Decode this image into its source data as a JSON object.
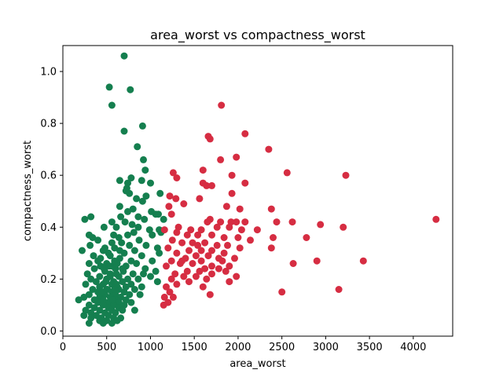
{
  "chart_data": {
    "type": "scatter",
    "title": "area_worst vs compactness_worst",
    "xlabel": "area_worst",
    "ylabel": "compactness_worst",
    "xlim": [
      0,
      4450
    ],
    "ylim": [
      -0.02,
      1.1
    ],
    "xticks": [
      0,
      500,
      1000,
      1500,
      2000,
      2500,
      3000,
      3500,
      4000
    ],
    "yticks": [
      0.0,
      0.2,
      0.4,
      0.6,
      0.8,
      1.0
    ],
    "grid": false,
    "colors": {
      "green": "#157f4f",
      "red": "#d62d42"
    },
    "series": [
      {
        "color": "#157f4f",
        "points": [
          [
            700,
            1.06
          ],
          [
            530,
            0.94
          ],
          [
            770,
            0.93
          ],
          [
            560,
            0.87
          ],
          [
            910,
            0.79
          ],
          [
            700,
            0.77
          ],
          [
            850,
            0.71
          ],
          [
            920,
            0.66
          ],
          [
            940,
            0.62
          ],
          [
            780,
            0.59
          ],
          [
            650,
            0.58
          ],
          [
            900,
            0.58
          ],
          [
            1000,
            0.57
          ],
          [
            740,
            0.57
          ],
          [
            730,
            0.55
          ],
          [
            760,
            0.53
          ],
          [
            720,
            0.54
          ],
          [
            1110,
            0.53
          ],
          [
            950,
            0.52
          ],
          [
            840,
            0.51
          ],
          [
            910,
            0.5
          ],
          [
            650,
            0.48
          ],
          [
            800,
            0.47
          ],
          [
            740,
            0.46
          ],
          [
            1010,
            0.46
          ],
          [
            1090,
            0.45
          ],
          [
            1060,
            0.45
          ],
          [
            860,
            0.44
          ],
          [
            660,
            0.44
          ],
          [
            320,
            0.44
          ],
          [
            250,
            0.43
          ],
          [
            1150,
            0.43
          ],
          [
            930,
            0.43
          ],
          [
            560,
            0.42
          ],
          [
            710,
            0.42
          ],
          [
            790,
            0.41
          ],
          [
            470,
            0.4
          ],
          [
            860,
            0.4
          ],
          [
            610,
            0.4
          ],
          [
            990,
            0.39
          ],
          [
            1100,
            0.39
          ],
          [
            1120,
            0.38
          ],
          [
            1020,
            0.37
          ],
          [
            300,
            0.37
          ],
          [
            580,
            0.37
          ],
          [
            740,
            0.37
          ],
          [
            810,
            0.38
          ],
          [
            340,
            0.36
          ],
          [
            640,
            0.36
          ],
          [
            870,
            0.35
          ],
          [
            400,
            0.35
          ],
          [
            670,
            0.34
          ],
          [
            760,
            0.33
          ],
          [
            950,
            0.33
          ],
          [
            310,
            0.33
          ],
          [
            1080,
            0.32
          ],
          [
            480,
            0.32
          ],
          [
            590,
            0.32
          ],
          [
            820,
            0.31
          ],
          [
            220,
            0.31
          ],
          [
            460,
            0.31
          ],
          [
            700,
            0.3
          ],
          [
            1100,
            0.3
          ],
          [
            350,
            0.29
          ],
          [
            900,
            0.29
          ],
          [
            540,
            0.29
          ],
          [
            650,
            0.28
          ],
          [
            400,
            0.27
          ],
          [
            780,
            0.27
          ],
          [
            1020,
            0.27
          ],
          [
            300,
            0.26
          ],
          [
            500,
            0.26
          ],
          [
            620,
            0.26
          ],
          [
            840,
            0.26
          ],
          [
            720,
            0.25
          ],
          [
            430,
            0.25
          ],
          [
            560,
            0.25
          ],
          [
            940,
            0.24
          ],
          [
            360,
            0.24
          ],
          [
            600,
            0.24
          ],
          [
            480,
            0.23
          ],
          [
            690,
            0.23
          ],
          [
            1060,
            0.23
          ],
          [
            280,
            0.22
          ],
          [
            540,
            0.22
          ],
          [
            800,
            0.22
          ],
          [
            920,
            0.22
          ],
          [
            1000,
            0.21
          ],
          [
            420,
            0.21
          ],
          [
            640,
            0.21
          ],
          [
            740,
            0.2
          ],
          [
            320,
            0.2
          ],
          [
            500,
            0.2
          ],
          [
            860,
            0.2
          ],
          [
            580,
            0.19
          ],
          [
            380,
            0.19
          ],
          [
            680,
            0.19
          ],
          [
            1080,
            0.19
          ],
          [
            460,
            0.18
          ],
          [
            560,
            0.18
          ],
          [
            780,
            0.18
          ],
          [
            260,
            0.18
          ],
          [
            620,
            0.17
          ],
          [
            420,
            0.17
          ],
          [
            720,
            0.17
          ],
          [
            900,
            0.17
          ],
          [
            340,
            0.16
          ],
          [
            500,
            0.16
          ],
          [
            640,
            0.16
          ],
          [
            820,
            0.16
          ],
          [
            560,
            0.15
          ],
          [
            400,
            0.15
          ],
          [
            700,
            0.15
          ],
          [
            300,
            0.14
          ],
          [
            480,
            0.14
          ],
          [
            600,
            0.14
          ],
          [
            760,
            0.14
          ],
          [
            880,
            0.14
          ],
          [
            420,
            0.13
          ],
          [
            540,
            0.13
          ],
          [
            660,
            0.13
          ],
          [
            240,
            0.13
          ],
          [
            360,
            0.12
          ],
          [
            460,
            0.12
          ],
          [
            600,
            0.12
          ],
          [
            720,
            0.12
          ],
          [
            180,
            0.12
          ],
          [
            520,
            0.11
          ],
          [
            400,
            0.11
          ],
          [
            640,
            0.11
          ],
          [
            780,
            0.11
          ],
          [
            300,
            0.1
          ],
          [
            460,
            0.1
          ],
          [
            580,
            0.1
          ],
          [
            700,
            0.1
          ],
          [
            360,
            0.09
          ],
          [
            520,
            0.09
          ],
          [
            640,
            0.09
          ],
          [
            260,
            0.08
          ],
          [
            420,
            0.08
          ],
          [
            560,
            0.08
          ],
          [
            680,
            0.08
          ],
          [
            820,
            0.08
          ],
          [
            320,
            0.07
          ],
          [
            480,
            0.07
          ],
          [
            600,
            0.07
          ],
          [
            240,
            0.06
          ],
          [
            380,
            0.06
          ],
          [
            520,
            0.06
          ],
          [
            660,
            0.05
          ],
          [
            440,
            0.05
          ],
          [
            580,
            0.05
          ],
          [
            320,
            0.05
          ],
          [
            500,
            0.04
          ],
          [
            420,
            0.04
          ],
          [
            620,
            0.04
          ],
          [
            300,
            0.03
          ],
          [
            560,
            0.03
          ],
          [
            460,
            0.03
          ],
          [
            540,
            0.21
          ],
          [
            590,
            0.27
          ],
          [
            610,
            0.18
          ],
          [
            470,
            0.24
          ],
          [
            520,
            0.3
          ],
          [
            680,
            0.24
          ],
          [
            560,
            0.34
          ],
          [
            430,
            0.28
          ],
          [
            650,
            0.31
          ],
          [
            510,
            0.16
          ],
          [
            570,
            0.12
          ],
          [
            490,
            0.19
          ],
          [
            530,
            0.25
          ],
          [
            610,
            0.22
          ],
          [
            450,
            0.15
          ],
          [
            590,
            0.16
          ]
        ]
      },
      {
        "color": "#d62d42",
        "points": [
          [
            1810,
            0.87
          ],
          [
            1660,
            0.75
          ],
          [
            1680,
            0.74
          ],
          [
            2080,
            0.76
          ],
          [
            2350,
            0.7
          ],
          [
            1980,
            0.67
          ],
          [
            1800,
            0.66
          ],
          [
            1600,
            0.62
          ],
          [
            1260,
            0.61
          ],
          [
            2560,
            0.61
          ],
          [
            3230,
            0.6
          ],
          [
            1300,
            0.59
          ],
          [
            1930,
            0.6
          ],
          [
            1600,
            0.57
          ],
          [
            1700,
            0.56
          ],
          [
            2080,
            0.57
          ],
          [
            1640,
            0.56
          ],
          [
            1930,
            0.53
          ],
          [
            1220,
            0.52
          ],
          [
            1290,
            0.51
          ],
          [
            1380,
            0.49
          ],
          [
            1560,
            0.51
          ],
          [
            2380,
            0.47
          ],
          [
            1210,
            0.48
          ],
          [
            1870,
            0.48
          ],
          [
            1240,
            0.45
          ],
          [
            2020,
            0.47
          ],
          [
            1680,
            0.43
          ],
          [
            1650,
            0.42
          ],
          [
            1800,
            0.42
          ],
          [
            1920,
            0.42
          ],
          [
            1980,
            0.42
          ],
          [
            2080,
            0.42
          ],
          [
            2440,
            0.42
          ],
          [
            2620,
            0.42
          ],
          [
            2940,
            0.41
          ],
          [
            3200,
            0.4
          ],
          [
            4260,
            0.43
          ],
          [
            1320,
            0.4
          ],
          [
            1460,
            0.39
          ],
          [
            1580,
            0.39
          ],
          [
            1760,
            0.4
          ],
          [
            1900,
            0.4
          ],
          [
            2040,
            0.39
          ],
          [
            2220,
            0.39
          ],
          [
            1160,
            0.39
          ],
          [
            1300,
            0.38
          ],
          [
            1420,
            0.37
          ],
          [
            1540,
            0.37
          ],
          [
            1700,
            0.37
          ],
          [
            1840,
            0.36
          ],
          [
            2000,
            0.36
          ],
          [
            2400,
            0.36
          ],
          [
            2780,
            0.36
          ],
          [
            2140,
            0.35
          ],
          [
            1250,
            0.35
          ],
          [
            1360,
            0.34
          ],
          [
            1480,
            0.34
          ],
          [
            1620,
            0.34
          ],
          [
            1760,
            0.33
          ],
          [
            1880,
            0.33
          ],
          [
            2020,
            0.32
          ],
          [
            1200,
            0.32
          ],
          [
            1440,
            0.31
          ],
          [
            1580,
            0.31
          ],
          [
            1700,
            0.31
          ],
          [
            1840,
            0.3
          ],
          [
            2380,
            0.32
          ],
          [
            1300,
            0.3
          ],
          [
            1520,
            0.29
          ],
          [
            1660,
            0.29
          ],
          [
            1400,
            0.28
          ],
          [
            1780,
            0.28
          ],
          [
            1960,
            0.28
          ],
          [
            1240,
            0.27
          ],
          [
            1580,
            0.27
          ],
          [
            1820,
            0.27
          ],
          [
            2900,
            0.27
          ],
          [
            3430,
            0.27
          ],
          [
            2630,
            0.26
          ],
          [
            1340,
            0.26
          ],
          [
            1480,
            0.26
          ],
          [
            1700,
            0.25
          ],
          [
            1900,
            0.25
          ],
          [
            1180,
            0.25
          ],
          [
            1620,
            0.24
          ],
          [
            1780,
            0.24
          ],
          [
            1420,
            0.23
          ],
          [
            1560,
            0.23
          ],
          [
            1280,
            0.22
          ],
          [
            1700,
            0.22
          ],
          [
            1860,
            0.23
          ],
          [
            1980,
            0.21
          ],
          [
            1380,
            0.21
          ],
          [
            1520,
            0.21
          ],
          [
            1240,
            0.2
          ],
          [
            1640,
            0.2
          ],
          [
            1440,
            0.19
          ],
          [
            1300,
            0.18
          ],
          [
            1900,
            0.19
          ],
          [
            1180,
            0.17
          ],
          [
            1600,
            0.17
          ],
          [
            2500,
            0.15
          ],
          [
            3150,
            0.16
          ],
          [
            1220,
            0.15
          ],
          [
            1160,
            0.13
          ],
          [
            1680,
            0.14
          ],
          [
            1200,
            0.11
          ],
          [
            1150,
            0.1
          ],
          [
            1260,
            0.13
          ],
          [
            1360,
            0.27
          ],
          [
            1540,
            0.33
          ]
        ]
      }
    ]
  }
}
